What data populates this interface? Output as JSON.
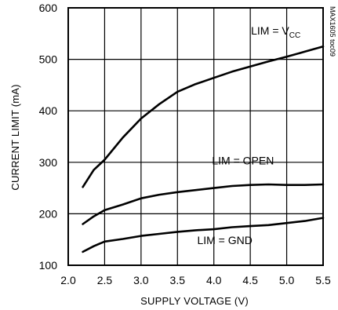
{
  "chart_data": {
    "type": "line",
    "title": "",
    "xlabel": "SUPPLY VOLTAGE (V)",
    "ylabel": "CURRENT LIMIT (mA)",
    "xlim": [
      2.0,
      5.5
    ],
    "ylim": [
      100,
      600
    ],
    "x_ticks": [
      "2.0",
      "2.5",
      "3.0",
      "3.5",
      "4.0",
      "4.5",
      "5.0",
      "5.5"
    ],
    "y_ticks": [
      "100",
      "200",
      "300",
      "400",
      "500",
      "600"
    ],
    "grid": true,
    "legend": "none",
    "series": [
      {
        "name": "LIM = VCC",
        "x": [
          2.2,
          2.35,
          2.5,
          2.75,
          3.0,
          3.25,
          3.5,
          3.75,
          4.0,
          4.25,
          4.5,
          4.75,
          5.0,
          5.25,
          5.5
        ],
        "values": [
          252,
          285,
          305,
          348,
          385,
          413,
          437,
          452,
          464,
          476,
          486,
          496,
          505,
          515,
          525
        ]
      },
      {
        "name": "LIM = OPEN",
        "x": [
          2.2,
          2.35,
          2.5,
          2.75,
          3.0,
          3.25,
          3.5,
          3.75,
          4.0,
          4.25,
          4.5,
          4.75,
          5.0,
          5.25,
          5.5
        ],
        "values": [
          180,
          195,
          207,
          218,
          230,
          237,
          242,
          246,
          250,
          254,
          256,
          257,
          256,
          256,
          257
        ]
      },
      {
        "name": "LIM = GND",
        "x": [
          2.2,
          2.35,
          2.5,
          2.75,
          3.0,
          3.25,
          3.5,
          3.75,
          4.0,
          4.25,
          4.5,
          4.75,
          5.0,
          5.25,
          5.5
        ],
        "values": [
          126,
          137,
          146,
          151,
          157,
          161,
          165,
          168,
          170,
          174,
          176,
          178,
          182,
          186,
          192
        ]
      }
    ],
    "annotations": [
      {
        "text": "LIM = V",
        "subscript": "CC",
        "x": 4.85,
        "y": 548
      },
      {
        "text": "LIM = OPEN",
        "x": 4.4,
        "y": 296
      },
      {
        "text": "LIM = GND",
        "x": 4.15,
        "y": 141
      }
    ],
    "side_code": "MAX1605 toc09"
  }
}
